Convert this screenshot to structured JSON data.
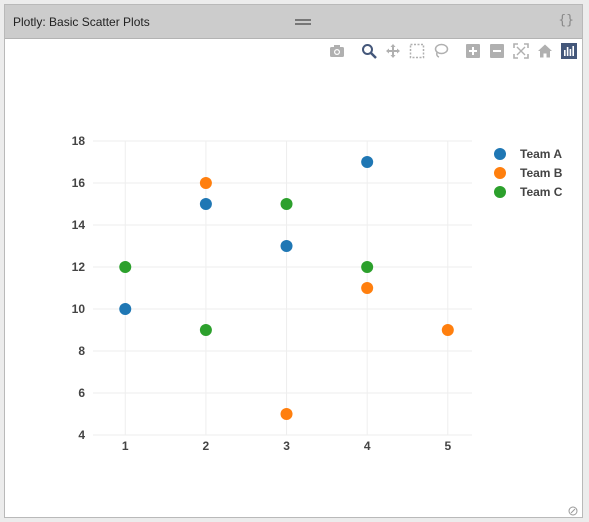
{
  "window": {
    "title": "Plotly: Basic Scatter Plots",
    "code_label": "{}"
  },
  "colors": {
    "team_a": "#1f77b4",
    "team_b": "#ff7f0e",
    "team_c": "#2ca02c",
    "grid": "#eeeeee",
    "tick": "#444444",
    "modebar_icon": "#b0b0b0",
    "modebar_active": "#44577a"
  },
  "modebar": [
    "camera-icon",
    "zoom-icon",
    "pan-icon",
    "box-select-icon",
    "lasso-icon",
    "zoom-in-icon",
    "zoom-out-icon",
    "autoscale-icon",
    "home-icon",
    "plotly-logo-icon"
  ],
  "chart_data": {
    "type": "scatter",
    "xlim": [
      0.6,
      5.3
    ],
    "ylim": [
      4,
      18
    ],
    "xticks": [
      1,
      2,
      3,
      4,
      5
    ],
    "yticks": [
      4,
      6,
      8,
      10,
      12,
      14,
      16,
      18
    ],
    "grid": true,
    "legend_position": "top-right",
    "series": [
      {
        "name": "Team A",
        "color": "#1f77b4",
        "x": [
          1,
          2,
          3,
          4
        ],
        "y": [
          10,
          15,
          13,
          17
        ]
      },
      {
        "name": "Team B",
        "color": "#ff7f0e",
        "x": [
          2,
          3,
          4,
          5
        ],
        "y": [
          16,
          5,
          11,
          9
        ]
      },
      {
        "name": "Team C",
        "color": "#2ca02c",
        "x": [
          1,
          2,
          3,
          4
        ],
        "y": [
          12,
          9,
          15,
          12
        ]
      }
    ]
  }
}
